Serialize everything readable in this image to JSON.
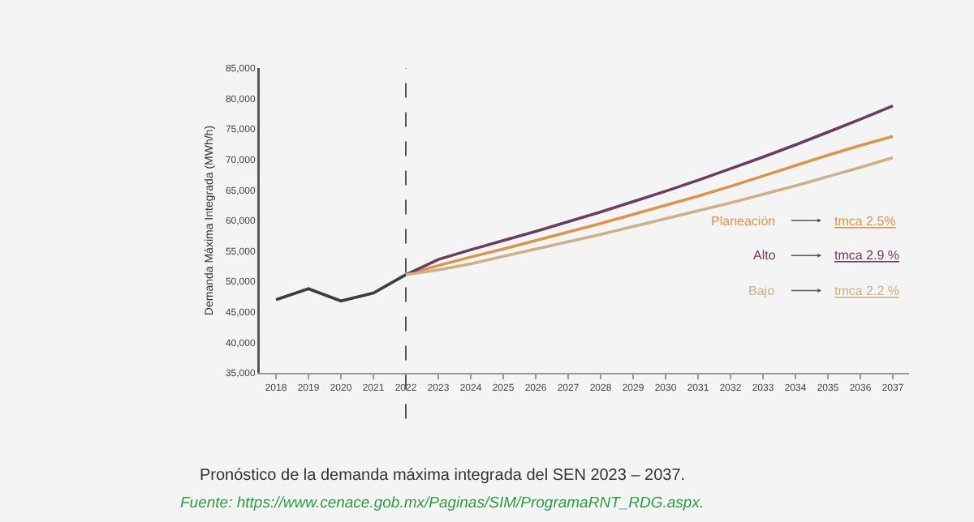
{
  "chart_data": {
    "type": "line",
    "title": "Pronóstico de la demanda máxima integrada del SEN 2023 – 2037.",
    "ylabel": "Demanda Máxima Integrada (MWh/h)",
    "categories": [
      "2018",
      "2019",
      "2020",
      "2021",
      "2022",
      "2023",
      "2024",
      "2025",
      "2026",
      "2027",
      "2028",
      "2029",
      "2030",
      "2031",
      "2032",
      "2033",
      "2034",
      "2035",
      "2036",
      "2037"
    ],
    "series": [
      {
        "color": "#3d3d3d",
        "values": [
          47000,
          48800,
          46800,
          48100,
          51100,
          null,
          null,
          null,
          null,
          null,
          null,
          null,
          null,
          null,
          null,
          null,
          null,
          null,
          null,
          null
        ]
      },
      {
        "name": "Planeación",
        "color": "#d9964a",
        "values": [
          null,
          null,
          null,
          null,
          51100,
          52600,
          54000,
          55300,
          56700,
          58100,
          59500,
          61000,
          62500,
          64000,
          65600,
          67300,
          69000,
          70700,
          72300,
          73800
        ]
      },
      {
        "name": "Alto",
        "color": "#6b3d5e",
        "values": [
          null,
          null,
          null,
          null,
          51100,
          53600,
          55200,
          56700,
          58200,
          59800,
          61400,
          63100,
          64800,
          66600,
          68500,
          70400,
          72400,
          74500,
          76600,
          78800
        ]
      },
      {
        "name": "Bajo",
        "color": "#cdb089",
        "values": [
          null,
          null,
          null,
          null,
          51100,
          51900,
          52900,
          54100,
          55300,
          56500,
          57700,
          59000,
          60300,
          61600,
          62900,
          64300,
          65700,
          67200,
          68700,
          70300
        ]
      }
    ],
    "annotations": [
      "tmca 2.5%",
      "tmca 2.9 %",
      "tmca 2.2 %",
      "Fuente: https://www.cenace.gob.mx/Paginas/SIM/ProgramaRNT_RDG.aspx."
    ],
    "ylim": [
      35000,
      85000
    ],
    "yticks": [
      {
        "value": 35000,
        "label": "35,000"
      },
      {
        "value": 40000,
        "label": "40,000"
      },
      {
        "value": 45000,
        "label": "45,000"
      },
      {
        "value": 50000,
        "label": "50,000"
      },
      {
        "value": 55000,
        "label": "55,000"
      },
      {
        "value": 60000,
        "label": "60,000"
      },
      {
        "value": 65000,
        "label": "65,000"
      },
      {
        "value": 70000,
        "label": "70,000"
      },
      {
        "value": 75000,
        "label": "75,000"
      },
      {
        "value": 80000,
        "label": "80,000"
      },
      {
        "value": 85000,
        "label": "85,000"
      }
    ],
    "ref_lines": [
      {
        "axis": "x",
        "value": "2022",
        "color": "#555555",
        "line_style": "dashed"
      }
    ],
    "legend": "right",
    "grid": false,
    "marker": "none",
    "line_style": "solid"
  }
}
